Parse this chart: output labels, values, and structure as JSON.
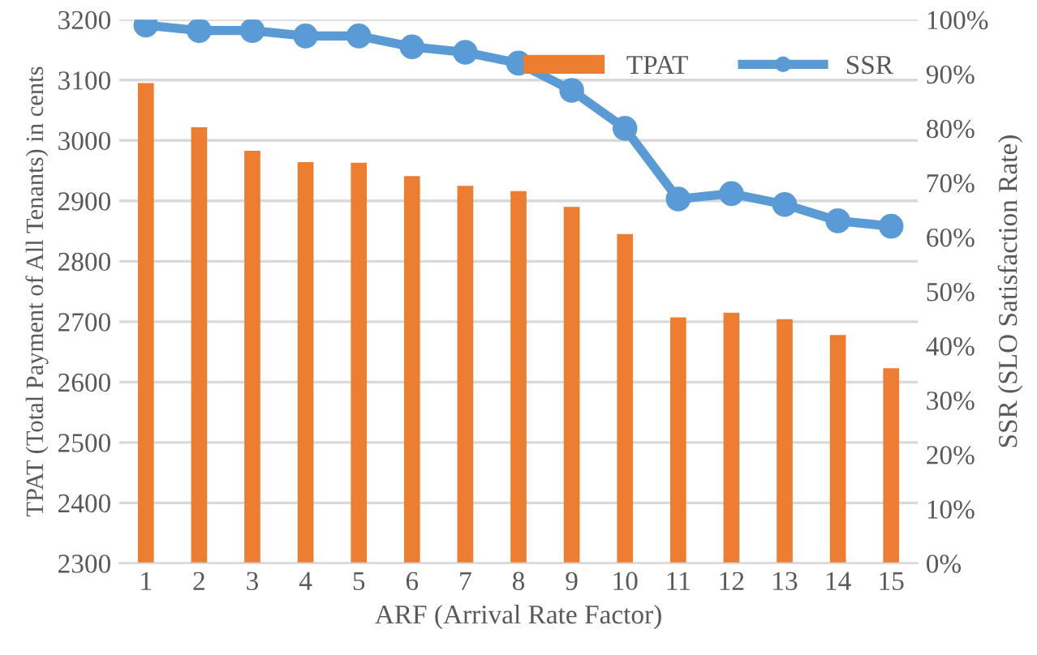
{
  "chart_data": {
    "type": "bar",
    "xlabel": "ARF (Arrival Rate Factor)",
    "ylabel": "TPAT (Total Payment of All Tenants) in cents",
    "y2label": "SSR (SLO Satisfaction Rate)",
    "categories": [
      "1",
      "2",
      "3",
      "4",
      "5",
      "6",
      "7",
      "8",
      "9",
      "10",
      "11",
      "12",
      "13",
      "14",
      "15"
    ],
    "series": [
      {
        "name": "TPAT",
        "color": "#ed7d31",
        "values": [
          3095,
          3022,
          2983,
          2964,
          2963,
          2941,
          2925,
          2916,
          2890,
          2845,
          2707,
          2715,
          2704,
          2678,
          2623
        ]
      },
      {
        "name": "SSR",
        "type": "line",
        "axis": "y2",
        "color": "#5b9bd5",
        "marker": "circle",
        "values": [
          99,
          98,
          98,
          97,
          97,
          95,
          94,
          92,
          87,
          80,
          67,
          68,
          66,
          63,
          62
        ]
      }
    ],
    "ylim": [
      2300,
      3200
    ],
    "yticks": [
      2300,
      2400,
      2500,
      2600,
      2700,
      2800,
      2900,
      3000,
      3100,
      3200
    ],
    "y2lim": [
      0,
      100
    ],
    "y2ticks": [
      {
        "value": 0,
        "label": "0%"
      },
      {
        "value": 10,
        "label": "10%"
      },
      {
        "value": 20,
        "label": "20%"
      },
      {
        "value": 30,
        "label": "30%"
      },
      {
        "value": 40,
        "label": "40%"
      },
      {
        "value": 50,
        "label": "50%"
      },
      {
        "value": 60,
        "label": "60%"
      },
      {
        "value": 70,
        "label": "70%"
      },
      {
        "value": 80,
        "label": "80%"
      },
      {
        "value": 90,
        "label": "90%"
      },
      {
        "value": 100,
        "label": "100%"
      }
    ],
    "grid": "y",
    "legend": "top right"
  }
}
